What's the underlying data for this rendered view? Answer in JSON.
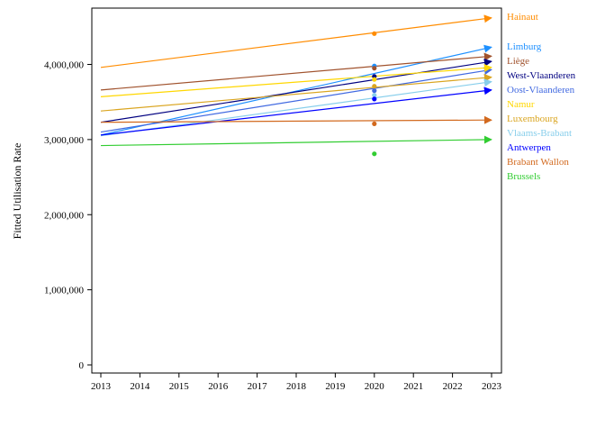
{
  "chart_data": {
    "type": "line",
    "title": "",
    "xlabel": "",
    "ylabel": "Fitted Utilisation Rate",
    "xlim": [
      2013,
      2023
    ],
    "ylim": [
      0,
      4800000
    ],
    "x_ticks": [
      2013,
      2014,
      2015,
      2016,
      2017,
      2018,
      2019,
      2020,
      2021,
      2022,
      2023
    ],
    "y_ticks": [
      0,
      1000000,
      2000000,
      3000000,
      4000000
    ],
    "y_tick_labels": [
      "0",
      "1,000,000",
      "2,000,000",
      "3,000,000",
      "4,000,000"
    ],
    "grid": false,
    "legend_position": "right",
    "x_points": [
      2013,
      2023
    ],
    "observed_year": 2020,
    "series": [
      {
        "name": "Hainaut",
        "color": "#ff8c00",
        "fitted": [
          3960000,
          4620000
        ],
        "observed": 4410000
      },
      {
        "name": "Limburg",
        "color": "#1e90ff",
        "fitted": [
          3060000,
          4230000
        ],
        "observed": 3980000
      },
      {
        "name": "Liège",
        "color": "#a0522d",
        "fitted": [
          3660000,
          4110000
        ],
        "observed": 3950000
      },
      {
        "name": "West-Vlaanderen",
        "color": "#000080",
        "fitted": [
          3230000,
          4040000
        ],
        "observed": 3840000
      },
      {
        "name": "Oost-Vlaanderen",
        "color": "#4169e1",
        "fitted": [
          3100000,
          3930000
        ],
        "observed": 3650000
      },
      {
        "name": "Namur",
        "color": "#ffd700",
        "fitted": [
          3570000,
          3960000
        ],
        "observed": 3800000
      },
      {
        "name": "Luxembourg",
        "color": "#daa520",
        "fitted": [
          3380000,
          3830000
        ],
        "observed": 3710000
      },
      {
        "name": "Vlaams-Brabant",
        "color": "#87ceeb",
        "fitted": [
          3050000,
          3770000
        ],
        "observed": 3590000
      },
      {
        "name": "Antwerpen",
        "color": "#0000ff",
        "fitted": [
          3060000,
          3660000
        ],
        "observed": 3540000
      },
      {
        "name": "Brabant Wallon",
        "color": "#d2691e",
        "fitted": [
          3230000,
          3260000
        ],
        "observed": 3210000
      },
      {
        "name": "Brussels",
        "color": "#32cd32",
        "fitted": [
          2920000,
          3000000
        ],
        "observed": 2810000
      }
    ]
  }
}
